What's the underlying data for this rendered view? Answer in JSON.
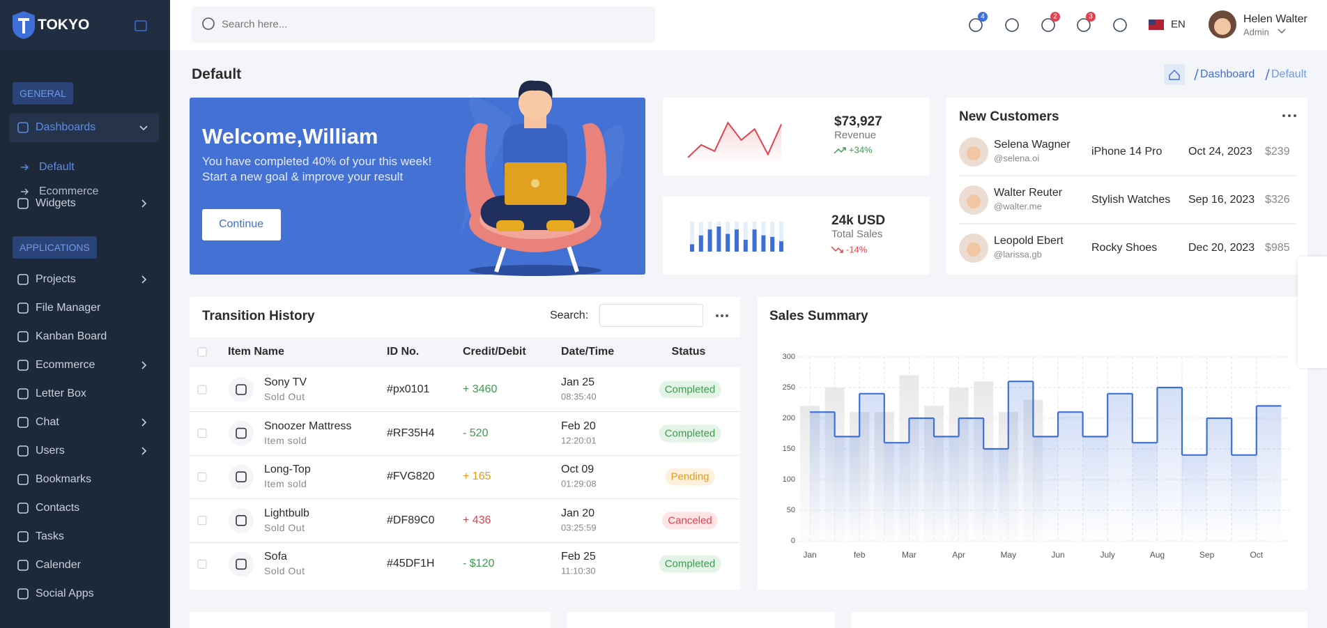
{
  "sidebar": {
    "brand": "TOKYO",
    "sections": [
      {
        "title": "GENERAL",
        "items": [
          {
            "label": "Dashboards",
            "expandable": true,
            "active": true,
            "children": [
              {
                "label": "Default",
                "active": true
              },
              {
                "label": "Ecommerce",
                "active": false
              }
            ]
          },
          {
            "label": "Widgets",
            "expandable": true
          }
        ]
      },
      {
        "title": "APPLICATIONS",
        "items": [
          {
            "label": "Projects",
            "expandable": true
          },
          {
            "label": "File Manager",
            "expandable": false
          },
          {
            "label": "Kanban Board",
            "expandable": false
          },
          {
            "label": "Ecommerce",
            "expandable": true
          },
          {
            "label": "Letter Box",
            "expandable": false
          },
          {
            "label": "Chat",
            "expandable": true
          },
          {
            "label": "Users",
            "expandable": true
          },
          {
            "label": "Bookmarks",
            "expandable": false
          },
          {
            "label": "Contacts",
            "expandable": false
          },
          {
            "label": "Tasks",
            "expandable": false
          },
          {
            "label": "Calender",
            "expandable": false
          },
          {
            "label": "Social Apps",
            "expandable": false
          }
        ]
      }
    ]
  },
  "header": {
    "search_placeholder": "Search here...",
    "badges": [
      {
        "count": "4",
        "color": "#3e6fd8"
      },
      null,
      {
        "count": "2",
        "color": "#e2424e"
      },
      {
        "count": "3",
        "color": "#e2424e"
      },
      null
    ],
    "language": "EN",
    "user": {
      "name": "Helen Walter",
      "role": "Admin"
    }
  },
  "page": {
    "title": "Default",
    "breadcrumb": [
      "Dashboard",
      "Default"
    ]
  },
  "welcome": {
    "title": "Welcome,William",
    "lines": [
      "You have completed 40% of your this week!",
      "Start a new goal & improve your result"
    ],
    "button": "Continue"
  },
  "revenue": {
    "value": "$73,927",
    "label": "Revenue",
    "change": "+34%",
    "chart": {
      "type": "line",
      "color": "#e2424e",
      "values": [
        8,
        24,
        16,
        52,
        30,
        44,
        12,
        50
      ]
    }
  },
  "total_sales": {
    "value": "24k USD",
    "label": "Total Sales",
    "change": "-14%",
    "chart": {
      "type": "bar",
      "color": "#3e6fd8",
      "values": [
        10,
        22,
        30,
        34,
        24,
        30,
        16,
        30,
        22,
        20,
        14
      ]
    }
  },
  "new_customers": {
    "title": "New Customers",
    "rows": [
      {
        "name": "Selena Wagner",
        "handle": "@selena.oi",
        "product": "iPhone 14 Pro",
        "date": "Oct 24, 2023",
        "amount": "$239"
      },
      {
        "name": "Walter Reuter",
        "handle": "@walter.me",
        "product": "Stylish Watches",
        "date": "Sep 16, 2023",
        "amount": "$326"
      },
      {
        "name": "Leopold Ebert",
        "handle": "@larissa.gb",
        "product": "Rocky Shoes",
        "date": "Dec 20, 2023",
        "amount": "$985"
      }
    ]
  },
  "transactions": {
    "title": "Transition History",
    "search_label": "Search:",
    "columns": [
      "Item Name",
      "ID No.",
      "Credit/Debit",
      "Date/Time",
      "Status"
    ],
    "rows": [
      {
        "item": "Sony TV",
        "sub": "Sold Out",
        "id": "#px0101",
        "amount": "+ 3460",
        "amount_color": "#3a9d4e",
        "date": "Jan 25",
        "time": "08:35:40",
        "status": "Completed",
        "status_color": "#3a9d4e",
        "status_bg": "#e3f4e6"
      },
      {
        "item": "Snoozer Mattress",
        "sub": "Item sold",
        "id": "#RF35H4",
        "amount": "- 520",
        "amount_color": "#3a9d4e",
        "date": "Feb 20",
        "time": "12:20:01",
        "status": "Completed",
        "status_color": "#3a9d4e",
        "status_bg": "#e3f4e6"
      },
      {
        "item": "Long-Top",
        "sub": "Item sold",
        "id": "#FVG820",
        "amount": "+ 165",
        "amount_color": "#e69b12",
        "date": "Oct 09",
        "time": "01:29:08",
        "status": "Pending",
        "status_color": "#e69b12",
        "status_bg": "#fdf1de"
      },
      {
        "item": "Lightbulb",
        "sub": "Sold Out",
        "id": "#DF89C0",
        "amount": "+ 436",
        "amount_color": "#e2424e",
        "date": "Jan 20",
        "time": "03:25:59",
        "status": "Canceled",
        "status_color": "#e2424e",
        "status_bg": "#fde5e6"
      },
      {
        "item": "Sofa",
        "sub": "Sold Out",
        "id": "#45DF1H",
        "amount": "- $120",
        "amount_color": "#3a9d4e",
        "date": "Feb 25",
        "time": "11:10:30",
        "status": "Completed",
        "status_color": "#3a9d4e",
        "status_bg": "#e3f4e6"
      }
    ]
  },
  "sales_summary": {
    "title": "Sales Summary",
    "type": "step",
    "grid": true,
    "categories": [
      "Jan",
      null,
      "feb",
      null,
      "Mar",
      null,
      "Apr",
      null,
      "May",
      null,
      "Jun",
      null,
      "July",
      null,
      "Aug",
      null,
      "Sep",
      null,
      "Oct"
    ],
    "series": [
      {
        "type": "bar",
        "color": "#ebebeb",
        "values": [
          220,
          250,
          210,
          210,
          270,
          220,
          250,
          260,
          210,
          230,
          null,
          null,
          null,
          null,
          null,
          null,
          null,
          null,
          null
        ]
      },
      {
        "type": "step",
        "color": "#3e6fd8",
        "values": [
          210,
          170,
          240,
          160,
          200,
          170,
          200,
          150,
          260,
          170,
          210,
          170,
          240,
          160,
          250,
          140,
          200,
          140,
          220
        ]
      }
    ],
    "ylim": [
      0,
      300
    ],
    "yticks": [
      0,
      50,
      100,
      150,
      200,
      250,
      300
    ]
  }
}
